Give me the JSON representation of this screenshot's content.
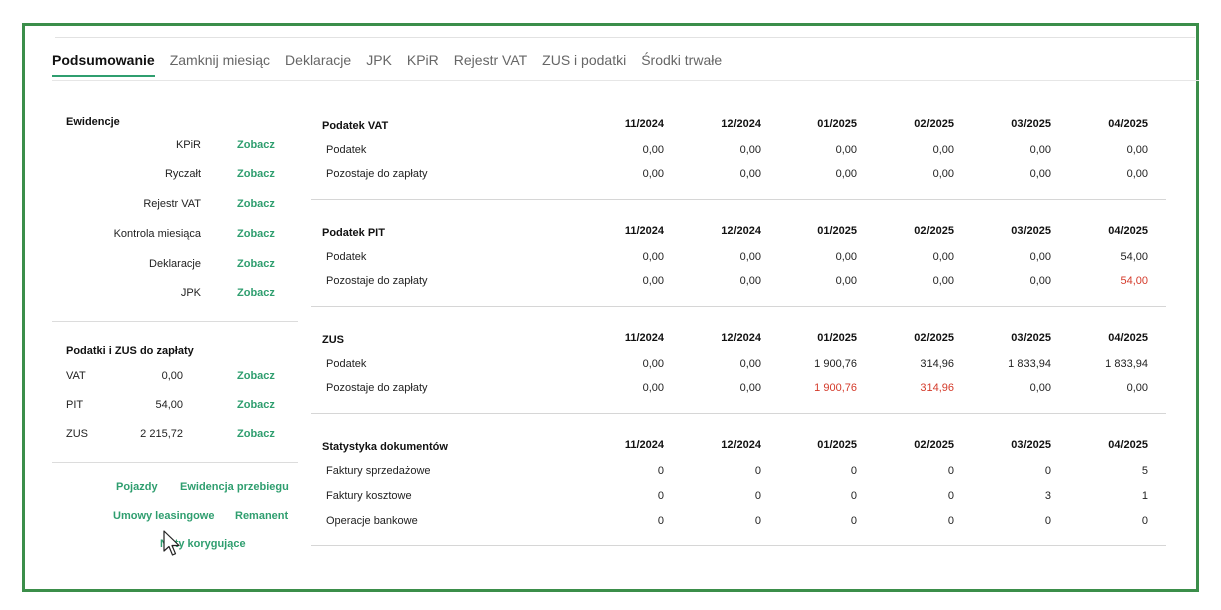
{
  "tabs": [
    {
      "label": "Podsumowanie",
      "active": true
    },
    {
      "label": "Zamknij miesiąc",
      "active": false
    },
    {
      "label": "Deklaracje",
      "active": false
    },
    {
      "label": "JPK",
      "active": false
    },
    {
      "label": "KPiR",
      "active": false
    },
    {
      "label": "Rejestr VAT",
      "active": false
    },
    {
      "label": "ZUS i podatki",
      "active": false
    },
    {
      "label": "Środki trwałe",
      "active": false
    }
  ],
  "ewidencje": {
    "title": "Ewidencje",
    "link_label": "Zobacz",
    "items": [
      "KPiR",
      "Ryczałt",
      "Rejestr VAT",
      "Kontrola miesiąca",
      "Deklaracje",
      "JPK"
    ]
  },
  "podatki": {
    "title": "Podatki i ZUS do zapłaty",
    "link_label": "Zobacz",
    "items": [
      {
        "label": "VAT",
        "value": "0,00"
      },
      {
        "label": "PIT",
        "value": "54,00"
      },
      {
        "label": "ZUS",
        "value": "2 215,72"
      }
    ]
  },
  "extra_links": {
    "pojazdy": "Pojazdy",
    "ewidencja_przebiegu": "Ewidencja przebiegu",
    "umowy_leasingowe": "Umowy leasingowe",
    "remanent": "Remanent",
    "noty": "Noty korygujące"
  },
  "tables": [
    {
      "title": "Podatek VAT",
      "months": [
        "11/2024",
        "12/2024",
        "01/2025",
        "02/2025",
        "03/2025",
        "04/2025"
      ],
      "rows": [
        {
          "label": "Podatek",
          "values": [
            "0,00",
            "0,00",
            "0,00",
            "0,00",
            "0,00",
            "0,00"
          ],
          "red": [
            false,
            false,
            false,
            false,
            false,
            false
          ]
        },
        {
          "label": "Pozostaje do zapłaty",
          "values": [
            "0,00",
            "0,00",
            "0,00",
            "0,00",
            "0,00",
            "0,00"
          ],
          "red": [
            false,
            false,
            false,
            false,
            false,
            false
          ]
        }
      ]
    },
    {
      "title": "Podatek PIT",
      "months": [
        "11/2024",
        "12/2024",
        "01/2025",
        "02/2025",
        "03/2025",
        "04/2025"
      ],
      "rows": [
        {
          "label": "Podatek",
          "values": [
            "0,00",
            "0,00",
            "0,00",
            "0,00",
            "0,00",
            "54,00"
          ],
          "red": [
            false,
            false,
            false,
            false,
            false,
            false
          ]
        },
        {
          "label": "Pozostaje do zapłaty",
          "values": [
            "0,00",
            "0,00",
            "0,00",
            "0,00",
            "0,00",
            "54,00"
          ],
          "red": [
            false,
            false,
            false,
            false,
            false,
            true
          ]
        }
      ]
    },
    {
      "title": "ZUS",
      "months": [
        "11/2024",
        "12/2024",
        "01/2025",
        "02/2025",
        "03/2025",
        "04/2025"
      ],
      "rows": [
        {
          "label": "Podatek",
          "values": [
            "0,00",
            "0,00",
            "1 900,76",
            "314,96",
            "1 833,94",
            "1 833,94"
          ],
          "red": [
            false,
            false,
            false,
            false,
            false,
            false
          ]
        },
        {
          "label": "Pozostaje do zapłaty",
          "values": [
            "0,00",
            "0,00",
            "1 900,76",
            "314,96",
            "0,00",
            "0,00"
          ],
          "red": [
            false,
            false,
            true,
            true,
            false,
            false
          ]
        }
      ]
    },
    {
      "title": "Statystyka dokumentów",
      "months": [
        "11/2024",
        "12/2024",
        "01/2025",
        "02/2025",
        "03/2025",
        "04/2025"
      ],
      "rows": [
        {
          "label": "Faktury sprzedażowe",
          "values": [
            "0",
            "0",
            "0",
            "0",
            "0",
            "5"
          ],
          "red": [
            false,
            false,
            false,
            false,
            false,
            false
          ]
        },
        {
          "label": "Faktury kosztowe",
          "values": [
            "0",
            "0",
            "0",
            "0",
            "3",
            "1"
          ],
          "red": [
            false,
            false,
            false,
            false,
            false,
            false
          ]
        },
        {
          "label": "Operacje bankowe",
          "values": [
            "0",
            "0",
            "0",
            "0",
            "0",
            "0"
          ],
          "red": [
            false,
            false,
            false,
            false,
            false,
            false
          ]
        }
      ]
    }
  ],
  "colors": {
    "accent": "#2f9e6f",
    "frame": "#3b8e4a",
    "negative": "#d43a2a"
  },
  "cursor": "arrow-cursor-icon"
}
